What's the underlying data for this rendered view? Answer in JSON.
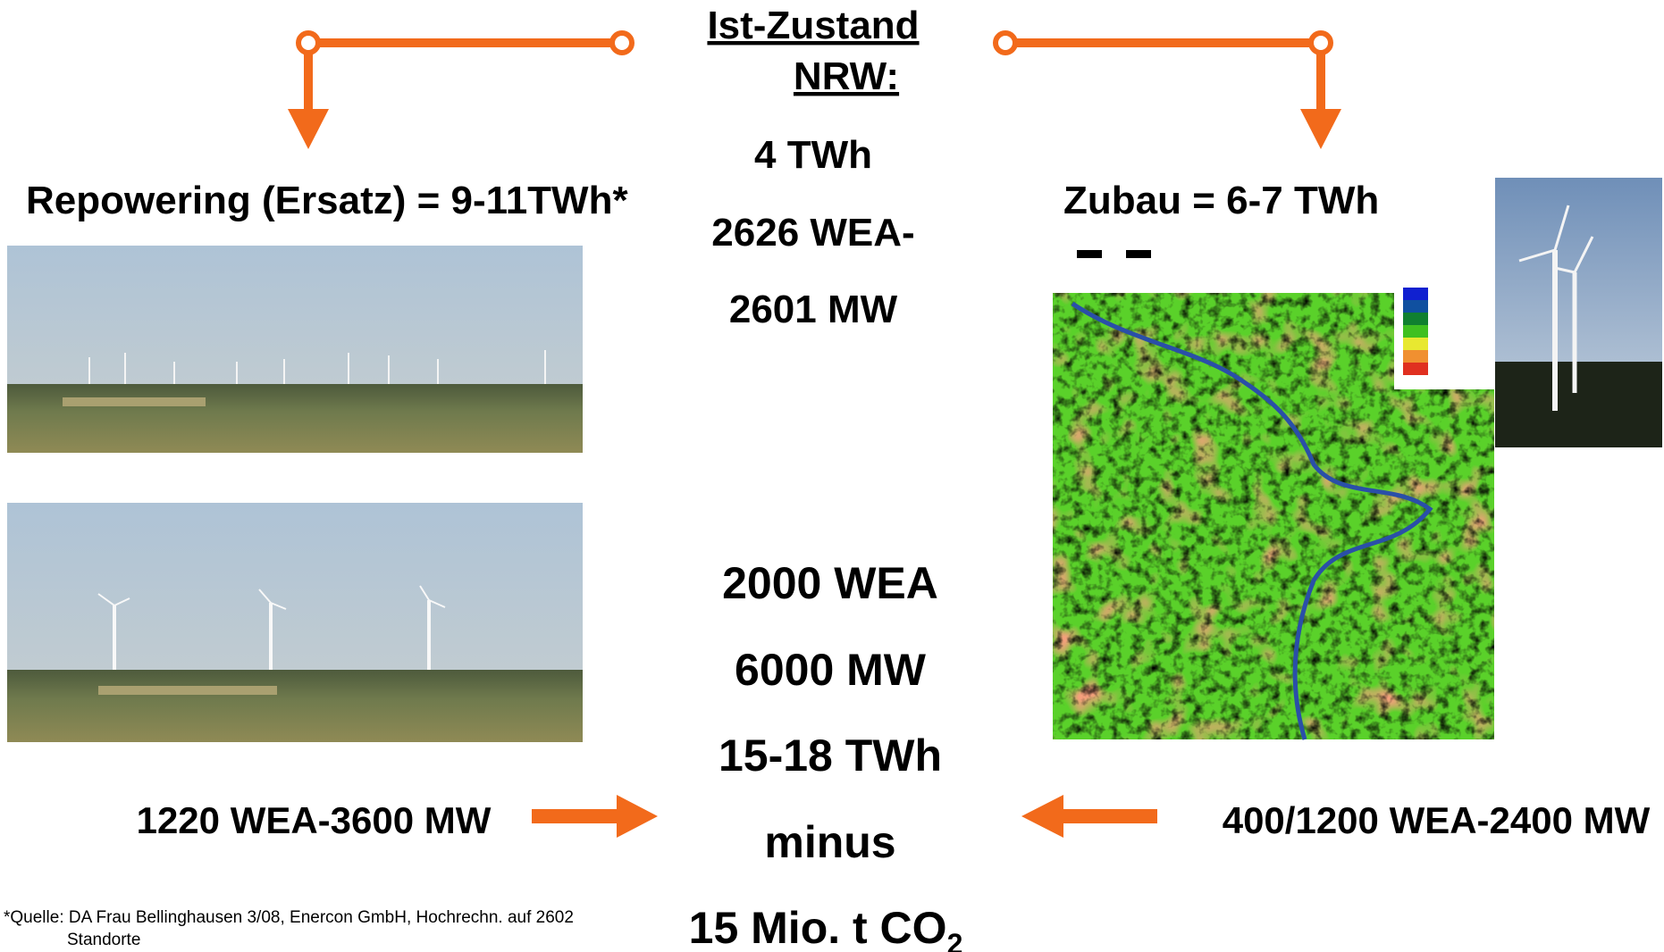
{
  "title": [
    "Ist-Zustand",
    "NRW:"
  ],
  "current": [
    "4 TWh",
    "2626 WEA-",
    "2601 MW"
  ],
  "left": {
    "heading": "Repowering (Ersatz) = 9-11TWh*",
    "result": "1220 WEA-3600 MW"
  },
  "right": {
    "heading": "Zubau = 6-7 TWh",
    "result": "400/1200 WEA-2400 MW"
  },
  "total": [
    "2000 WEA",
    "6000 MW",
    "15-18 TWh",
    "minus"
  ],
  "co2": {
    "text": "15 Mio. t CO",
    "subscript": "2"
  },
  "footnote": [
    "*Quelle: DA Frau Bellinghausen 3/08, Enercon GmbH, Hochrechn. auf 2602",
    "Standorte"
  ]
}
